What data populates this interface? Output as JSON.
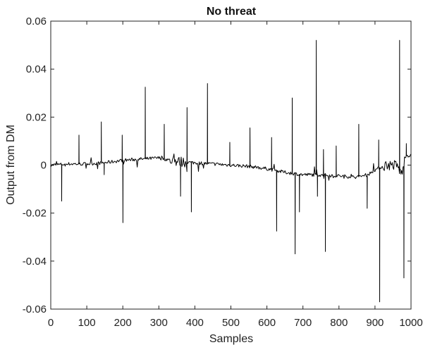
{
  "chart_data": {
    "type": "line",
    "title": "No threat",
    "xlabel": "Samples",
    "ylabel": "Output from DM",
    "xlim": [
      0,
      1000
    ],
    "ylim": [
      -0.06,
      0.06
    ],
    "xticks": [
      0,
      100,
      200,
      300,
      400,
      500,
      600,
      700,
      800,
      900,
      1000
    ],
    "yticks": [
      -0.06,
      -0.04,
      -0.02,
      0,
      0.02,
      0.04,
      0.06
    ],
    "xtick_labels": [
      "0",
      "100",
      "200",
      "300",
      "400",
      "500",
      "600",
      "700",
      "800",
      "900",
      "1000"
    ],
    "ytick_labels": [
      "-0.06",
      "-0.04",
      "-0.02",
      "0",
      "0.02",
      "0.04",
      "0.06"
    ],
    "grid": false,
    "series": [
      {
        "color": "#000000",
        "baseline": [
          [
            0,
            0.0
          ],
          [
            50,
            0.0005
          ],
          [
            100,
            0.0005
          ],
          [
            150,
            0.001
          ],
          [
            200,
            0.002
          ],
          [
            250,
            0.0025
          ],
          [
            300,
            0.003
          ],
          [
            350,
            0.0015
          ],
          [
            400,
            0.001
          ],
          [
            450,
            0.0005
          ],
          [
            500,
            0.0
          ],
          [
            550,
            -0.0005
          ],
          [
            600,
            -0.0015
          ],
          [
            650,
            -0.003
          ],
          [
            700,
            -0.004
          ],
          [
            750,
            -0.004
          ],
          [
            800,
            -0.0045
          ],
          [
            850,
            -0.005
          ],
          [
            880,
            -0.004
          ],
          [
            900,
            -0.002
          ],
          [
            930,
            0.0
          ],
          [
            960,
            0.0
          ],
          [
            975,
            -0.004
          ],
          [
            985,
            0.004
          ],
          [
            1000,
            0.004
          ]
        ],
        "spikes": [
          [
            30,
            -0.015
          ],
          [
            78,
            0.0125
          ],
          [
            140,
            0.018
          ],
          [
            148,
            -0.004
          ],
          [
            198,
            0.0125
          ],
          [
            200,
            -0.024
          ],
          [
            262,
            0.0325
          ],
          [
            315,
            0.017
          ],
          [
            360,
            -0.013
          ],
          [
            378,
            0.024
          ],
          [
            390,
            -0.0195
          ],
          [
            435,
            0.034
          ],
          [
            497,
            0.0095
          ],
          [
            553,
            0.0155
          ],
          [
            613,
            0.0115
          ],
          [
            627,
            -0.0275
          ],
          [
            670,
            0.028
          ],
          [
            678,
            -0.037
          ],
          [
            690,
            -0.0195
          ],
          [
            737,
            0.052
          ],
          [
            740,
            -0.013
          ],
          [
            757,
            0.0065
          ],
          [
            762,
            -0.036
          ],
          [
            792,
            0.008
          ],
          [
            855,
            0.017
          ],
          [
            878,
            -0.018
          ],
          [
            910,
            0.0105
          ],
          [
            913,
            -0.057
          ],
          [
            968,
            0.052
          ],
          [
            980,
            -0.047
          ],
          [
            987,
            0.009
          ]
        ]
      }
    ]
  }
}
